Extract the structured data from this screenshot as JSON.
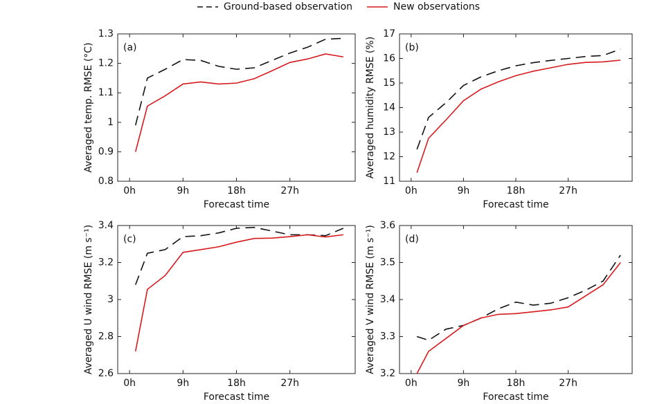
{
  "chart_data": [
    {
      "type": "line",
      "panel": "(a)",
      "ylabel": "Averaged temp. RMSE (°C)",
      "xlabel": "Forecast time",
      "x": [
        1,
        3,
        6,
        9,
        12,
        15,
        18,
        21,
        24,
        27,
        30,
        33,
        36
      ],
      "xlim": [
        -2,
        38
      ],
      "xticks": [
        {
          "value": 0,
          "label": "0h"
        },
        {
          "value": 9,
          "label": "9h"
        },
        {
          "value": 18,
          "label": "18h"
        },
        {
          "value": 27,
          "label": "27h"
        }
      ],
      "ylim": [
        0.8,
        1.3
      ],
      "yticks": [
        0.8,
        0.9,
        1,
        1.1,
        1.2,
        1.3
      ],
      "series": [
        {
          "name": "Ground-based observation",
          "color": "#111111",
          "dash": true,
          "values": [
            0.99,
            1.15,
            1.18,
            1.213,
            1.21,
            1.19,
            1.18,
            1.185,
            1.21,
            1.235,
            1.255,
            1.282,
            1.285
          ]
        },
        {
          "name": "New observations",
          "color": "#d7191c",
          "dash": false,
          "values": [
            0.9,
            1.055,
            1.09,
            1.13,
            1.137,
            1.13,
            1.133,
            1.148,
            1.175,
            1.203,
            1.215,
            1.232,
            1.222
          ]
        }
      ]
    },
    {
      "type": "line",
      "panel": "(b)",
      "ylabel": "Averaged humidity RMSE (%)",
      "xlabel": "Forecast time",
      "x": [
        1,
        3,
        6,
        9,
        12,
        15,
        18,
        21,
        24,
        27,
        30,
        33,
        36
      ],
      "xlim": [
        -2,
        38
      ],
      "xticks": [
        {
          "value": 0,
          "label": "0h"
        },
        {
          "value": 9,
          "label": "9h"
        },
        {
          "value": 18,
          "label": "18h"
        },
        {
          "value": 27,
          "label": "27h"
        }
      ],
      "ylim": [
        11,
        17
      ],
      "yticks": [
        11,
        12,
        13,
        14,
        15,
        16,
        17
      ],
      "series": [
        {
          "color": "#111111",
          "dash": true,
          "values": [
            12.3,
            13.6,
            14.2,
            14.9,
            15.25,
            15.5,
            15.7,
            15.83,
            15.92,
            16.0,
            16.08,
            16.12,
            16.38
          ]
        },
        {
          "color": "#d7191c",
          "dash": false,
          "values": [
            11.35,
            12.75,
            13.5,
            14.28,
            14.75,
            15.05,
            15.3,
            15.48,
            15.62,
            15.76,
            15.84,
            15.86,
            15.93
          ]
        }
      ]
    },
    {
      "type": "line",
      "panel": "(c)",
      "ylabel": "Averaged U wind RMSE (m s⁻¹)",
      "xlabel": "Forecast time",
      "x": [
        1,
        3,
        6,
        9,
        12,
        15,
        18,
        21,
        24,
        27,
        30,
        33,
        36
      ],
      "xlim": [
        -2,
        38
      ],
      "xticks": [
        {
          "value": 0,
          "label": "0h"
        },
        {
          "value": 9,
          "label": "9h"
        },
        {
          "value": 18,
          "label": "18h"
        },
        {
          "value": 27,
          "label": "27h"
        }
      ],
      "ylim": [
        2.6,
        3.4
      ],
      "yticks": [
        2.6,
        2.8,
        3,
        3.2,
        3.4
      ],
      "series": [
        {
          "color": "#111111",
          "dash": true,
          "values": [
            3.08,
            3.25,
            3.27,
            3.34,
            3.345,
            3.36,
            3.385,
            3.39,
            3.37,
            3.35,
            3.35,
            3.345,
            3.385
          ]
        },
        {
          "color": "#d7191c",
          "dash": false,
          "values": [
            2.72,
            3.055,
            3.13,
            3.255,
            3.27,
            3.285,
            3.31,
            3.33,
            3.332,
            3.34,
            3.35,
            3.338,
            3.35
          ]
        }
      ]
    },
    {
      "type": "line",
      "panel": "(d)",
      "ylabel": "Averaged V wind RMSE (m s⁻¹)",
      "xlabel": "Forecast time",
      "x": [
        1,
        3,
        6,
        9,
        12,
        15,
        18,
        21,
        24,
        27,
        30,
        33,
        36
      ],
      "xlim": [
        -2,
        38
      ],
      "xticks": [
        {
          "value": 0,
          "label": "0h"
        },
        {
          "value": 9,
          "label": "9h"
        },
        {
          "value": 18,
          "label": "18h"
        },
        {
          "value": 27,
          "label": "27h"
        }
      ],
      "ylim": [
        3.2,
        3.6
      ],
      "yticks": [
        3.2,
        3.3,
        3.4,
        3.5,
        3.6
      ],
      "series": [
        {
          "color": "#111111",
          "dash": true,
          "values": [
            3.3,
            3.29,
            3.32,
            3.33,
            3.35,
            3.375,
            3.393,
            3.385,
            3.39,
            3.405,
            3.425,
            3.45,
            3.52
          ]
        },
        {
          "color": "#d7191c",
          "dash": false,
          "values": [
            3.2,
            3.26,
            3.295,
            3.33,
            3.35,
            3.36,
            3.362,
            3.367,
            3.372,
            3.38,
            3.41,
            3.44,
            3.5
          ]
        }
      ]
    }
  ]
}
